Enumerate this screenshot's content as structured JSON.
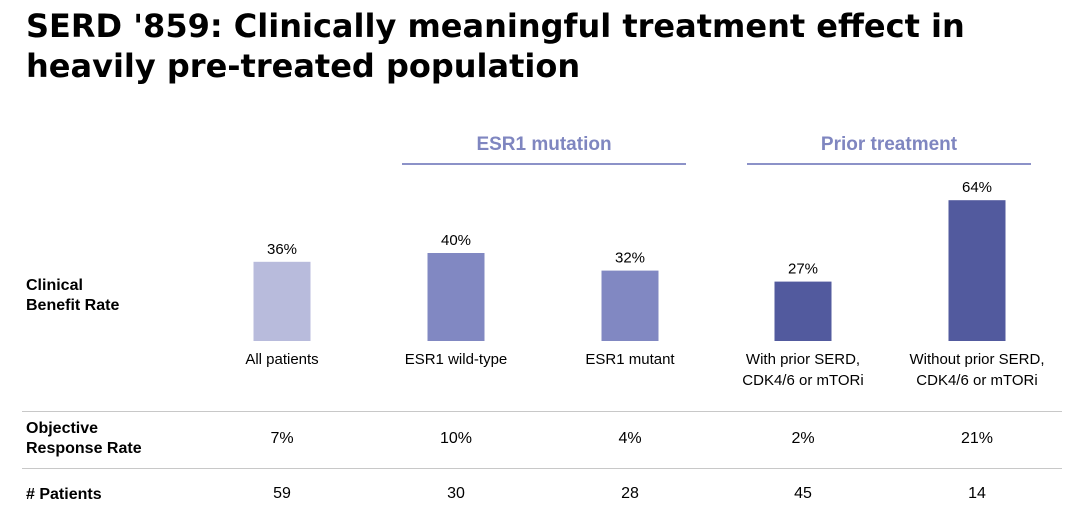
{
  "title_line1": "SERD '859: Clinically meaningful treatment effect in",
  "title_line2": "heavily pre-treated population",
  "groups": [
    {
      "label": "ESR1 mutation"
    },
    {
      "label": "Prior treatment"
    }
  ],
  "rows": {
    "cbr_line1": "Clinical",
    "cbr_line2": "Benefit Rate",
    "orr_line1": "Objective",
    "orr_line2": "Response Rate",
    "patients": "# Patients"
  },
  "columns": [
    {
      "cat1": "All patients",
      "cat2": "",
      "orr": "7%",
      "n": "59"
    },
    {
      "cat1": "ESR1 wild-type",
      "cat2": "",
      "orr": "10%",
      "n": "30"
    },
    {
      "cat1": "ESR1 mutant",
      "cat2": "",
      "orr": "4%",
      "n": "28"
    },
    {
      "cat1": "With prior SERD,",
      "cat2": "CDK4/6 or mTORi",
      "orr": "2%",
      "n": "45"
    },
    {
      "cat1": "Without prior SERD,",
      "cat2": "CDK4/6 or mTORi",
      "orr": "21%",
      "n": "14"
    }
  ],
  "chart_data": {
    "type": "bar",
    "categories": [
      "All patients",
      "ESR1 wild-type",
      "ESR1 mutant",
      "With prior SERD, CDK4/6 or mTORi",
      "Without prior SERD, CDK4/6 or mTORi"
    ],
    "values": [
      36,
      40,
      32,
      27,
      64
    ],
    "value_labels": [
      "36%",
      "40%",
      "32%",
      "27%",
      "64%"
    ],
    "ylabel": "Clinical Benefit Rate",
    "colors": [
      "#b8bbdc",
      "#8188c2",
      "#8188c2",
      "#525a9e",
      "#525a9e"
    ],
    "grid": false
  }
}
